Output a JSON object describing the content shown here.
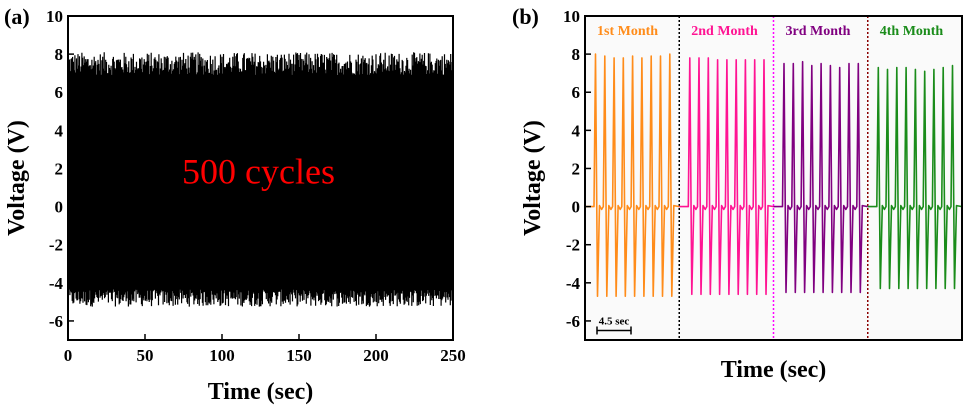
{
  "chart_data": [
    {
      "panel_label": "(a)",
      "type": "line",
      "title": "",
      "xlabel": "Time (sec)",
      "ylabel": "Voltage (V)",
      "xlim": [
        0,
        250
      ],
      "ylim": [
        -7,
        10
      ],
      "x_ticks": [
        "0",
        "50",
        "100",
        "150",
        "200",
        "250"
      ],
      "y_ticks": [
        "-6",
        "-4",
        "-2",
        "0",
        "2",
        "4",
        "6",
        "8",
        "10"
      ],
      "annotation": "500 cycles",
      "annotation_color": "#ff0000",
      "series": [
        {
          "color": "#000000",
          "cycles": 500,
          "x_range": [
            0,
            250
          ],
          "peak_max_approx": 7.5,
          "peak_min_approx": -4.8
        }
      ]
    },
    {
      "panel_label": "(b)",
      "type": "line",
      "title": "",
      "xlabel": "Time (sec)",
      "ylabel": "Voltage (V)",
      "ylim": [
        -7,
        10
      ],
      "y_ticks": [
        "-6",
        "-4",
        "-2",
        "0",
        "2",
        "4",
        "6",
        "8",
        "10"
      ],
      "scale_bar_label": "4.5 sec",
      "series": [
        {
          "name": "1st Month",
          "color": "#ff8c1a",
          "peaks": [
            8.0,
            7.9,
            7.8,
            7.8,
            7.9,
            7.8,
            7.9,
            7.9,
            8.0
          ],
          "troughs": [
            -4.7,
            -4.7,
            -4.7,
            -4.7,
            -4.7,
            -4.7,
            -4.7,
            -4.7,
            -4.7
          ]
        },
        {
          "name": "2nd Month",
          "color": "#ff1493",
          "peaks": [
            7.8,
            7.8,
            7.8,
            7.7,
            7.7,
            7.7,
            7.7,
            7.7,
            7.7
          ],
          "troughs": [
            -4.6,
            -4.6,
            -4.6,
            -4.6,
            -4.6,
            -4.6,
            -4.6,
            -4.6,
            -4.6
          ]
        },
        {
          "name": "3rd Month",
          "color": "#800080",
          "peaks": [
            7.5,
            7.5,
            7.6,
            7.4,
            7.5,
            7.4,
            7.3,
            7.5,
            7.5
          ],
          "troughs": [
            -4.5,
            -4.5,
            -4.5,
            -4.5,
            -4.5,
            -4.5,
            -4.5,
            -4.5,
            -4.5
          ]
        },
        {
          "name": "4th Month",
          "color": "#1a8c1a",
          "peaks": [
            7.3,
            7.2,
            7.3,
            7.3,
            7.2,
            7.1,
            7.2,
            7.3,
            7.4
          ],
          "troughs": [
            -4.3,
            -4.3,
            -4.3,
            -4.3,
            -4.3,
            -4.3,
            -4.3,
            -4.3,
            -4.3
          ]
        }
      ],
      "separator_colors": [
        "#000000",
        "#ff00ff",
        "#8b0000"
      ]
    }
  ]
}
